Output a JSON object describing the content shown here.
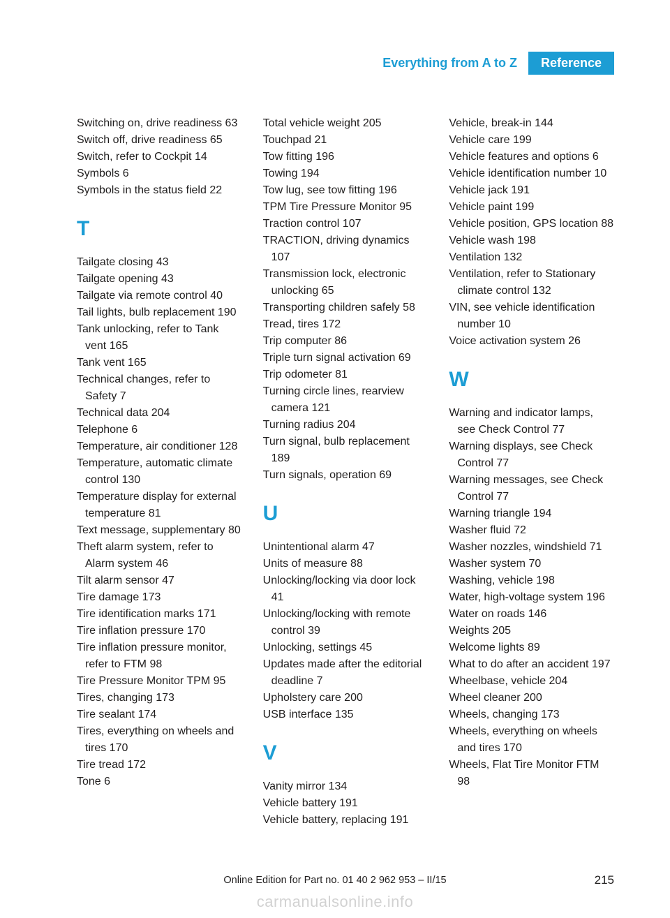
{
  "header": {
    "section": "Everything from A to Z",
    "tab": "Reference"
  },
  "columns": [
    {
      "blocks": [
        {
          "type": "entries",
          "items": [
            "Switching on, drive readiness 63",
            "Switch off, drive readiness 65",
            "Switch, refer to Cockpit 14",
            "Symbols 6",
            "Symbols in the status field 22"
          ]
        },
        {
          "type": "letter",
          "value": "T"
        },
        {
          "type": "entries",
          "items": [
            "Tailgate closing 43",
            "Tailgate opening 43",
            "Tailgate via remote control 40",
            "Tail lights, bulb replacement 190",
            "Tank unlocking, refer to Tank vent 165",
            "Tank vent 165",
            "Technical changes, refer to Safety 7",
            "Technical data 204",
            "Telephone 6",
            "Temperature, air conditioner 128",
            "Temperature, automatic climate control 130",
            "Temperature display for external temperature 81",
            "Text message, supplementary 80",
            "Theft alarm system, refer to Alarm system 46",
            "Tilt alarm sensor 47",
            "Tire damage 173",
            "Tire identification marks 171",
            "Tire inflation pressure 170",
            "Tire inflation pressure monitor, refer to FTM 98",
            "Tire Pressure Monitor TPM 95",
            "Tires, changing 173",
            "Tire sealant 174",
            "Tires, everything on wheels and tires 170",
            "Tire tread 172",
            "Tone 6"
          ]
        }
      ]
    },
    {
      "blocks": [
        {
          "type": "entries",
          "items": [
            "Total vehicle weight 205",
            "Touchpad 21",
            "Tow fitting 196",
            "Towing 194",
            "Tow lug, see tow fitting 196",
            "TPM Tire Pressure Monitor 95",
            "Traction control 107",
            "TRACTION, driving dynamics 107",
            "Transmission lock, electronic unlocking 65",
            "Transporting children safely 58",
            "Tread, tires 172",
            "Trip computer 86",
            "Triple turn signal activation 69",
            "Trip odometer 81",
            "Turning circle lines, rearview camera 121",
            "Turning radius 204",
            "Turn signal, bulb replacement 189",
            "Turn signals, operation 69"
          ]
        },
        {
          "type": "letter",
          "value": "U"
        },
        {
          "type": "entries",
          "items": [
            "Unintentional alarm 47",
            "Units of measure 88",
            "Unlocking/locking via door lock 41",
            "Unlocking/locking with remote control 39",
            "Unlocking, settings 45",
            "Updates made after the editorial deadline 7",
            "Upholstery care 200",
            "USB interface 135"
          ]
        },
        {
          "type": "letter",
          "value": "V"
        },
        {
          "type": "entries",
          "items": [
            "Vanity mirror 134",
            "Vehicle battery 191",
            "Vehicle battery, replacing 191"
          ]
        }
      ]
    },
    {
      "blocks": [
        {
          "type": "entries",
          "items": [
            "Vehicle, break-in 144",
            "Vehicle care 199",
            "Vehicle features and options 6",
            "Vehicle identification number 10",
            "Vehicle jack 191",
            "Vehicle paint 199",
            "Vehicle position, GPS location 88",
            "Vehicle wash 198",
            "Ventilation 132",
            "Ventilation, refer to Stationary climate control 132",
            "VIN, see vehicle identification number 10",
            "Voice activation system 26"
          ]
        },
        {
          "type": "letter",
          "value": "W"
        },
        {
          "type": "entries",
          "items": [
            "Warning and indicator lamps, see Check Control 77",
            "Warning displays, see Check Control 77",
            "Warning messages, see Check Control 77",
            "Warning triangle 194",
            "Washer fluid 72",
            "Washer nozzles, windshield 71",
            "Washer system 70",
            "Washing, vehicle 198",
            "Water, high-voltage system 196",
            "Water on roads 146",
            "Weights 205",
            "Welcome lights 89",
            "What to do after an accident 197",
            "Wheelbase, vehicle 204",
            "Wheel cleaner 200",
            "Wheels, changing 173",
            "Wheels, everything on wheels and tires 170",
            "Wheels, Flat Tire Monitor FTM 98"
          ]
        }
      ]
    }
  ],
  "footer": {
    "line": "Online Edition for Part no. 01 40 2 962 953 – II/15",
    "page": "215",
    "watermark": "carmanualsonline.info"
  }
}
